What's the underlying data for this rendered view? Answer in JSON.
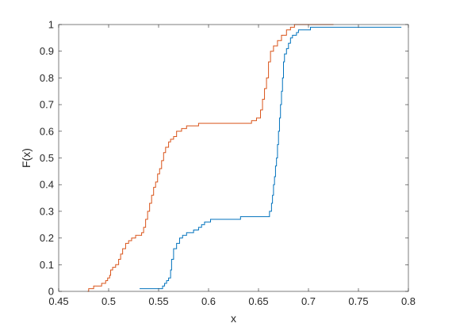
{
  "chart_data": {
    "type": "line",
    "title": "",
    "xlabel": "x",
    "ylabel": "F(x)",
    "xlim": [
      0.45,
      0.8
    ],
    "ylim": [
      0,
      1
    ],
    "xticks": [
      0.45,
      0.5,
      0.55,
      0.6,
      0.65,
      0.7,
      0.75,
      0.8
    ],
    "yticks": [
      0,
      0.1,
      0.2,
      0.3,
      0.4,
      0.5,
      0.6,
      0.7,
      0.8,
      0.9,
      1
    ],
    "xtick_labels": [
      "0.45",
      "0.5",
      "0.55",
      "0.6",
      "0.65",
      "0.7",
      "0.75",
      "0.8"
    ],
    "ytick_labels": [
      "0",
      "0.1",
      "0.2",
      "0.3",
      "0.4",
      "0.5",
      "0.6",
      "0.7",
      "0.8",
      "0.9",
      "1"
    ],
    "grid": false,
    "box": true,
    "step": true,
    "series": [
      {
        "color": "#0072BD",
        "points": [
          [
            0.531,
            0.01
          ],
          [
            0.552,
            0.01
          ],
          [
            0.554,
            0.02
          ],
          [
            0.556,
            0.03
          ],
          [
            0.558,
            0.04
          ],
          [
            0.56,
            0.05
          ],
          [
            0.562,
            0.08
          ],
          [
            0.563,
            0.12
          ],
          [
            0.565,
            0.16
          ],
          [
            0.568,
            0.18
          ],
          [
            0.571,
            0.2
          ],
          [
            0.574,
            0.21
          ],
          [
            0.578,
            0.22
          ],
          [
            0.583,
            0.22
          ],
          [
            0.585,
            0.23
          ],
          [
            0.59,
            0.24
          ],
          [
            0.593,
            0.25
          ],
          [
            0.596,
            0.26
          ],
          [
            0.6,
            0.26
          ],
          [
            0.602,
            0.27
          ],
          [
            0.63,
            0.27
          ],
          [
            0.632,
            0.28
          ],
          [
            0.66,
            0.28
          ],
          [
            0.661,
            0.3
          ],
          [
            0.663,
            0.33
          ],
          [
            0.664,
            0.36
          ],
          [
            0.665,
            0.4
          ],
          [
            0.666,
            0.43
          ],
          [
            0.667,
            0.47
          ],
          [
            0.668,
            0.5
          ],
          [
            0.669,
            0.55
          ],
          [
            0.67,
            0.6
          ],
          [
            0.671,
            0.65
          ],
          [
            0.672,
            0.7
          ],
          [
            0.673,
            0.75
          ],
          [
            0.674,
            0.8
          ],
          [
            0.675,
            0.86
          ],
          [
            0.676,
            0.89
          ],
          [
            0.678,
            0.91
          ],
          [
            0.68,
            0.93
          ],
          [
            0.682,
            0.95
          ],
          [
            0.684,
            0.96
          ],
          [
            0.688,
            0.97
          ],
          [
            0.69,
            0.98
          ],
          [
            0.7,
            0.98
          ],
          [
            0.702,
            0.99
          ],
          [
            0.793,
            0.99
          ]
        ]
      },
      {
        "color": "#D95319",
        "points": [
          [
            0.479,
            0.0
          ],
          [
            0.48,
            0.01
          ],
          [
            0.485,
            0.02
          ],
          [
            0.493,
            0.03
          ],
          [
            0.497,
            0.04
          ],
          [
            0.499,
            0.05
          ],
          [
            0.501,
            0.06
          ],
          [
            0.502,
            0.08
          ],
          [
            0.504,
            0.09
          ],
          [
            0.507,
            0.1
          ],
          [
            0.51,
            0.12
          ],
          [
            0.512,
            0.14
          ],
          [
            0.514,
            0.16
          ],
          [
            0.517,
            0.18
          ],
          [
            0.52,
            0.19
          ],
          [
            0.523,
            0.2
          ],
          [
            0.527,
            0.21
          ],
          [
            0.533,
            0.22
          ],
          [
            0.535,
            0.24
          ],
          [
            0.537,
            0.27
          ],
          [
            0.539,
            0.3
          ],
          [
            0.541,
            0.33
          ],
          [
            0.543,
            0.36
          ],
          [
            0.545,
            0.39
          ],
          [
            0.547,
            0.41
          ],
          [
            0.549,
            0.44
          ],
          [
            0.551,
            0.46
          ],
          [
            0.553,
            0.49
          ],
          [
            0.555,
            0.52
          ],
          [
            0.557,
            0.54
          ],
          [
            0.56,
            0.56
          ],
          [
            0.562,
            0.57
          ],
          [
            0.565,
            0.58
          ],
          [
            0.568,
            0.6
          ],
          [
            0.573,
            0.61
          ],
          [
            0.578,
            0.62
          ],
          [
            0.588,
            0.62
          ],
          [
            0.59,
            0.63
          ],
          [
            0.627,
            0.63
          ],
          [
            0.643,
            0.64
          ],
          [
            0.648,
            0.65
          ],
          [
            0.652,
            0.68
          ],
          [
            0.654,
            0.72
          ],
          [
            0.656,
            0.76
          ],
          [
            0.658,
            0.8
          ],
          [
            0.66,
            0.86
          ],
          [
            0.662,
            0.9
          ],
          [
            0.665,
            0.92
          ],
          [
            0.669,
            0.94
          ],
          [
            0.673,
            0.96
          ],
          [
            0.678,
            0.98
          ],
          [
            0.682,
            0.99
          ],
          [
            0.686,
            1.0
          ],
          [
            0.725,
            1.0
          ]
        ]
      }
    ]
  }
}
